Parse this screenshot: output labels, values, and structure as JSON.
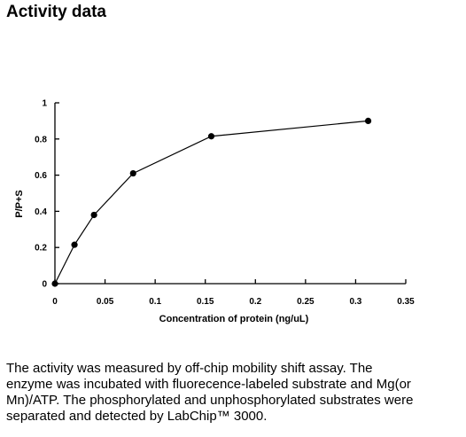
{
  "header": {
    "title": "Activity data"
  },
  "chart_data": {
    "type": "line",
    "title": "",
    "xlabel": "Concentration of protein (ng/uL)",
    "ylabel": "P/P+S",
    "xlim": [
      0,
      0.35
    ],
    "ylim": [
      0,
      1
    ],
    "x_ticks": [
      0,
      0.05,
      0.1,
      0.15,
      0.2,
      0.25,
      0.3,
      0.35
    ],
    "x_tick_labels": [
      "0",
      "0.05",
      "0.1",
      "0.15",
      "0.2",
      "0.25",
      "0.3",
      "0.35"
    ],
    "y_ticks": [
      0,
      0.2,
      0.4,
      0.6,
      0.8,
      1
    ],
    "y_tick_labels": [
      "0",
      "0.2",
      "0.4",
      "0.6",
      "0.8",
      "1"
    ],
    "grid": false,
    "legend": "none",
    "markers": "filled-circle",
    "color": "#000000",
    "series": [
      {
        "x": [
          0,
          0.0195,
          0.039,
          0.078,
          0.156,
          0.3125
        ],
        "y": [
          0,
          0.215,
          0.38,
          0.61,
          0.815,
          0.9
        ]
      }
    ]
  },
  "caption": {
    "lines": [
      "The activity was measured by off-chip mobility shift assay. The",
      "enzyme was incubated with fluorecence-labeled  substrate and Mg(or",
      "Mn)/ATP. The phosphorylated and unphosphorylated substrates were",
      "separated and detected by LabChip™ 3000."
    ]
  }
}
